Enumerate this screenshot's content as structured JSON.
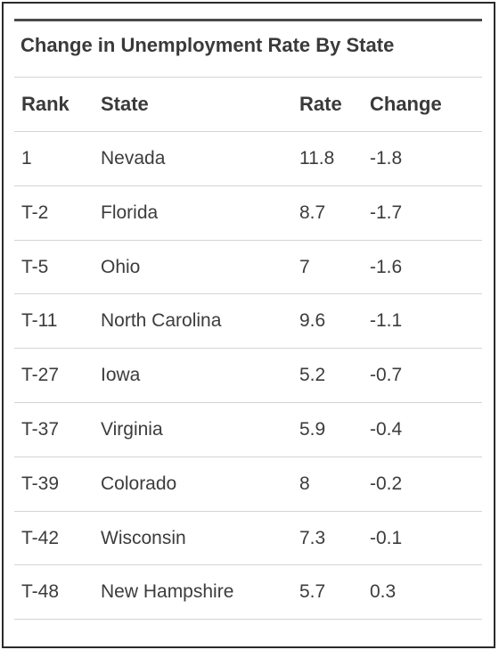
{
  "table": {
    "title": "Change in Unemployment Rate By State",
    "columns": [
      "Rank",
      "State",
      "Rate",
      "Change"
    ],
    "rows": [
      {
        "rank": "1",
        "state": "Nevada",
        "rate": "11.8",
        "change": "-1.8"
      },
      {
        "rank": "T-2",
        "state": "Florida",
        "rate": "8.7",
        "change": "-1.7"
      },
      {
        "rank": "T-5",
        "state": "Ohio",
        "rate": "7",
        "change": "-1.6"
      },
      {
        "rank": "T-11",
        "state": "North Carolina",
        "rate": "9.6",
        "change": "-1.1"
      },
      {
        "rank": "T-27",
        "state": "Iowa",
        "rate": "5.2",
        "change": "-0.7"
      },
      {
        "rank": "T-37",
        "state": "Virginia",
        "rate": "5.9",
        "change": "-0.4"
      },
      {
        "rank": "T-39",
        "state": "Colorado",
        "rate": "8",
        "change": "-0.2"
      },
      {
        "rank": "T-42",
        "state": "Wisconsin",
        "rate": "7.3",
        "change": "-0.1"
      },
      {
        "rank": "T-48",
        "state": "New Hampshire",
        "rate": "5.7",
        "change": "0.3"
      }
    ]
  }
}
